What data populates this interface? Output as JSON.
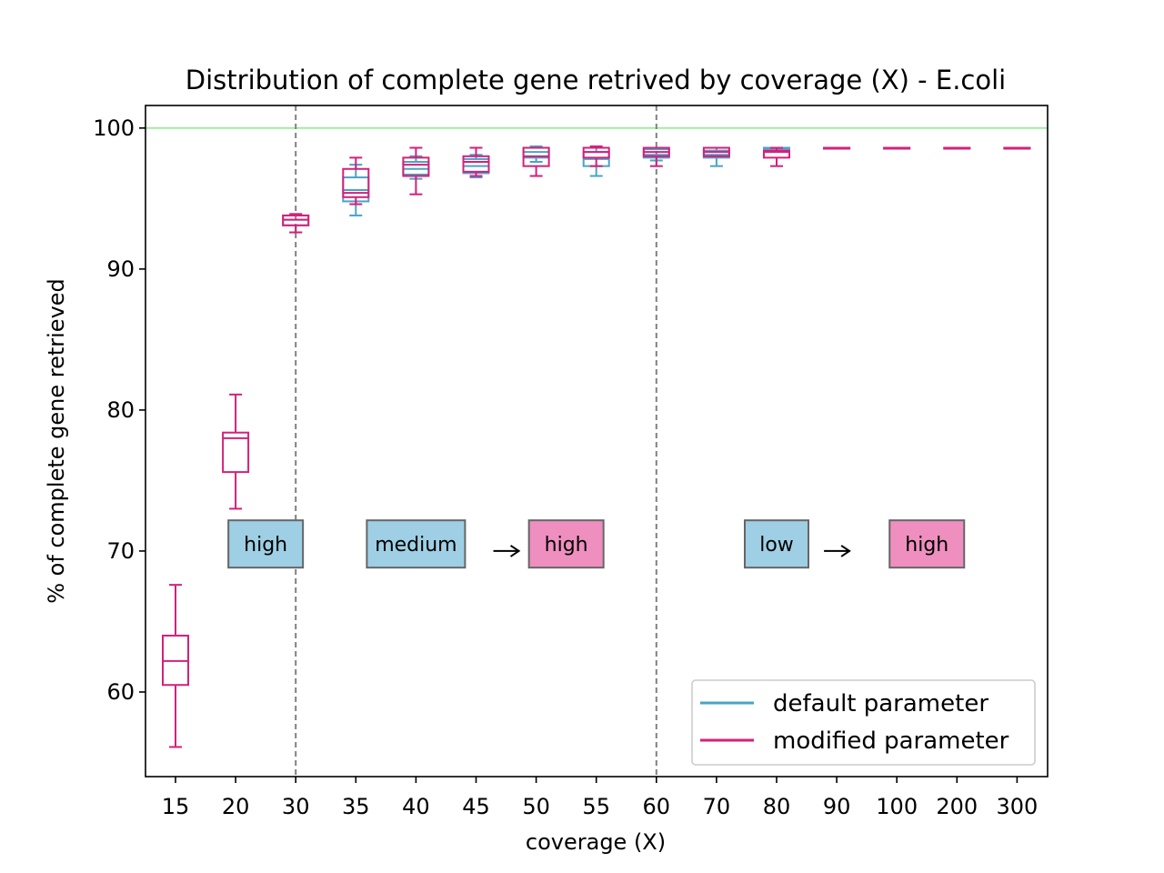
{
  "chart_data": {
    "type": "box",
    "title": "Distribution of complete gene retrived by coverage (X) - E.coli",
    "xlabel": "coverage (X)",
    "ylabel": "% of complete gene retrieved",
    "categories": [
      "15",
      "20",
      "30",
      "35",
      "40",
      "45",
      "50",
      "55",
      "60",
      "70",
      "80",
      "90",
      "100",
      "200",
      "300"
    ],
    "ylim": [
      54,
      101.6
    ],
    "yticks": [
      60,
      70,
      80,
      90,
      100
    ],
    "reference_line": {
      "y": 100,
      "color": "#90ee90"
    },
    "dividers": [
      "30",
      "60"
    ],
    "legend": {
      "position": "lower right"
    },
    "series": [
      {
        "name": "default parameter",
        "color": "#4aa3c8",
        "boxes": [
          null,
          null,
          {
            "min": 92.6,
            "q1": 93.1,
            "median": 93.5,
            "q3": 93.8,
            "max": 93.9
          },
          {
            "min": 93.8,
            "q1": 94.8,
            "median": 95.6,
            "q3": 96.5,
            "max": 97.4
          },
          {
            "min": 96.4,
            "q1": 96.7,
            "median": 97.1,
            "q3": 97.6,
            "max": 98.0
          },
          {
            "min": 96.5,
            "q1": 96.8,
            "median": 97.3,
            "q3": 97.8,
            "max": 98.1
          },
          {
            "min": 97.6,
            "q1": 97.9,
            "median": 98.3,
            "q3": 98.6,
            "max": 98.7
          },
          {
            "min": 96.6,
            "q1": 97.3,
            "median": 97.8,
            "q3": 98.3,
            "max": 98.6
          },
          {
            "min": 97.7,
            "q1": 97.9,
            "median": 98.1,
            "q3": 98.5,
            "max": 98.6
          },
          {
            "min": 97.3,
            "q1": 97.9,
            "median": 98.1,
            "q3": 98.4,
            "max": 98.6
          },
          {
            "min": 98.6,
            "q1": 98.6,
            "median": 98.6,
            "q3": 98.6,
            "max": 98.6
          },
          {
            "min": 98.6,
            "q1": 98.6,
            "median": 98.6,
            "q3": 98.6,
            "max": 98.6
          },
          {
            "min": 98.6,
            "q1": 98.6,
            "median": 98.6,
            "q3": 98.6,
            "max": 98.6
          },
          {
            "min": 98.6,
            "q1": 98.6,
            "median": 98.6,
            "q3": 98.6,
            "max": 98.6
          },
          {
            "min": 98.6,
            "q1": 98.6,
            "median": 98.6,
            "q3": 98.6,
            "max": 98.6
          }
        ]
      },
      {
        "name": "modified parameter",
        "color": "#d4207a",
        "boxes": [
          {
            "min": 56.1,
            "q1": 60.5,
            "median": 62.2,
            "q3": 64.0,
            "max": 67.6
          },
          {
            "min": 73.0,
            "q1": 75.6,
            "median": 78.0,
            "q3": 78.4,
            "max": 81.1
          },
          {
            "min": 92.6,
            "q1": 93.1,
            "median": 93.5,
            "q3": 93.8,
            "max": 93.9
          },
          {
            "min": 94.6,
            "q1": 95.1,
            "median": 95.4,
            "q3": 97.1,
            "max": 97.9
          },
          {
            "min": 95.3,
            "q1": 96.6,
            "median": 97.4,
            "q3": 97.9,
            "max": 98.6
          },
          {
            "min": 96.6,
            "q1": 96.9,
            "median": 97.6,
            "q3": 98.0,
            "max": 98.6
          },
          {
            "min": 96.6,
            "q1": 97.3,
            "median": 98.0,
            "q3": 98.6,
            "max": 98.6
          },
          {
            "min": 97.3,
            "q1": 97.9,
            "median": 98.3,
            "q3": 98.6,
            "max": 98.7
          },
          {
            "min": 97.3,
            "q1": 98.0,
            "median": 98.3,
            "q3": 98.6,
            "max": 98.6
          },
          {
            "min": 98.0,
            "q1": 98.0,
            "median": 98.3,
            "q3": 98.6,
            "max": 98.6
          },
          {
            "min": 97.3,
            "q1": 97.9,
            "median": 98.3,
            "q3": 98.4,
            "max": 98.6
          },
          {
            "min": 98.6,
            "q1": 98.6,
            "median": 98.6,
            "q3": 98.6,
            "max": 98.6
          },
          {
            "min": 98.6,
            "q1": 98.6,
            "median": 98.6,
            "q3": 98.6,
            "max": 98.6
          },
          {
            "min": 98.6,
            "q1": 98.6,
            "median": 98.6,
            "q3": 98.6,
            "max": 98.6
          },
          {
            "min": 98.6,
            "q1": 98.6,
            "median": 98.6,
            "q3": 98.6,
            "max": 98.6
          }
        ]
      }
    ],
    "phase_labels": [
      {
        "text": "high",
        "fill": "#9ecfe4",
        "x_from": "20",
        "x_to": "30",
        "y": 70.5
      },
      {
        "text": "medium",
        "fill": "#9ecfe4",
        "x_from": "35",
        "x_to": "45",
        "y": 70.5
      },
      {
        "text": "high",
        "fill": "#ee8fbf",
        "x_from": "50",
        "x_to": "55",
        "y": 70.5
      },
      {
        "text": "low",
        "fill": "#9ecfe4",
        "x_from": "80",
        "x_to": "80",
        "y": 70.5
      },
      {
        "text": "high",
        "fill": "#ee8fbf",
        "x_from": "100",
        "x_to": "200",
        "y": 70.5
      }
    ],
    "arrows": [
      {
        "from": "45",
        "to": "50",
        "y": 70
      },
      {
        "from": "90",
        "to": "90",
        "y": 70
      }
    ]
  }
}
